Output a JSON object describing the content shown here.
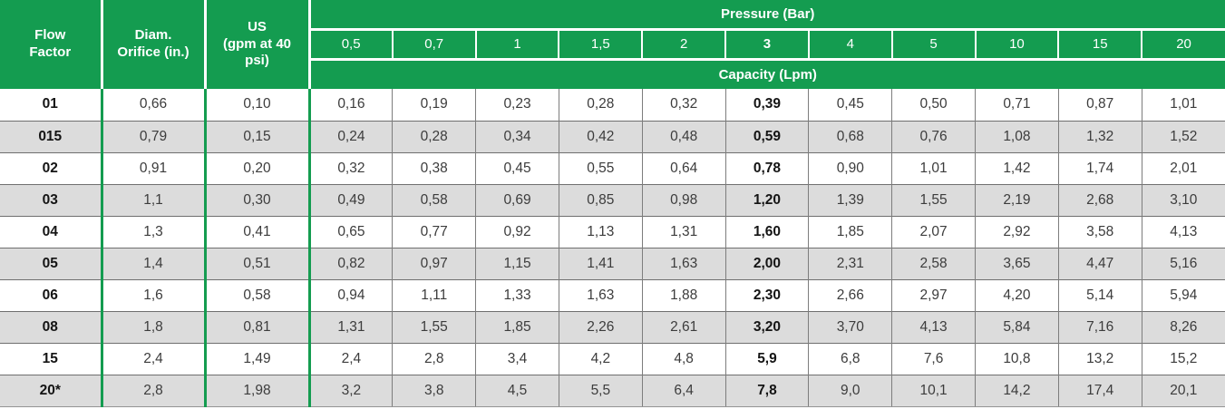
{
  "table": {
    "headers": {
      "flow_factor": "Flow\nFactor",
      "diam_orifice": "Diam.\nOrifice (in.)",
      "us_gpm": "US\n(gpm at 40\npsi)",
      "pressure": "Pressure (Bar)",
      "capacity": "Capacity (Lpm)"
    },
    "pressures": [
      "0,5",
      "0,7",
      "1",
      "1,5",
      "2",
      "3",
      "4",
      "5",
      "10",
      "15",
      "20"
    ],
    "bold_col": 5,
    "rows": [
      {
        "flow_factor": "01",
        "diam": "0,66",
        "us": "0,10",
        "capacities": [
          "0,16",
          "0,19",
          "0,23",
          "0,28",
          "0,32",
          "0,39",
          "0,45",
          "0,50",
          "0,71",
          "0,87",
          "1,01"
        ]
      },
      {
        "flow_factor": "015",
        "diam": "0,79",
        "us": "0,15",
        "capacities": [
          "0,24",
          "0,28",
          "0,34",
          "0,42",
          "0,48",
          "0,59",
          "0,68",
          "0,76",
          "1,08",
          "1,32",
          "1,52"
        ]
      },
      {
        "flow_factor": "02",
        "diam": "0,91",
        "us": "0,20",
        "capacities": [
          "0,32",
          "0,38",
          "0,45",
          "0,55",
          "0,64",
          "0,78",
          "0,90",
          "1,01",
          "1,42",
          "1,74",
          "2,01"
        ]
      },
      {
        "flow_factor": "03",
        "diam": "1,1",
        "us": "0,30",
        "capacities": [
          "0,49",
          "0,58",
          "0,69",
          "0,85",
          "0,98",
          "1,20",
          "1,39",
          "1,55",
          "2,19",
          "2,68",
          "3,10"
        ]
      },
      {
        "flow_factor": "04",
        "diam": "1,3",
        "us": "0,41",
        "capacities": [
          "0,65",
          "0,77",
          "0,92",
          "1,13",
          "1,31",
          "1,60",
          "1,85",
          "2,07",
          "2,92",
          "3,58",
          "4,13"
        ]
      },
      {
        "flow_factor": "05",
        "diam": "1,4",
        "us": "0,51",
        "capacities": [
          "0,82",
          "0,97",
          "1,15",
          "1,41",
          "1,63",
          "2,00",
          "2,31",
          "2,58",
          "3,65",
          "4,47",
          "5,16"
        ]
      },
      {
        "flow_factor": "06",
        "diam": "1,6",
        "us": "0,58",
        "capacities": [
          "0,94",
          "1,11",
          "1,33",
          "1,63",
          "1,88",
          "2,30",
          "2,66",
          "2,97",
          "4,20",
          "5,14",
          "5,94"
        ]
      },
      {
        "flow_factor": "08",
        "diam": "1,8",
        "us": "0,81",
        "capacities": [
          "1,31",
          "1,55",
          "1,85",
          "2,26",
          "2,61",
          "3,20",
          "3,70",
          "4,13",
          "5,84",
          "7,16",
          "8,26"
        ]
      },
      {
        "flow_factor": "15",
        "diam": "2,4",
        "us": "1,49",
        "capacities": [
          "2,4",
          "2,8",
          "3,4",
          "4,2",
          "4,8",
          "5,9",
          "6,8",
          "7,6",
          "10,8",
          "13,2",
          "15,2"
        ]
      },
      {
        "flow_factor": "20*",
        "diam": "2,8",
        "us": "1,98",
        "capacities": [
          "3,2",
          "3,8",
          "4,5",
          "5,5",
          "6,4",
          "7,8",
          "9,0",
          "10,1",
          "14,2",
          "17,4",
          "20,1"
        ]
      }
    ]
  },
  "colors": {
    "header_green": "#149c50",
    "alt_row_gray": "#dcdcdc",
    "grid_gray": "#6f6f6f"
  }
}
